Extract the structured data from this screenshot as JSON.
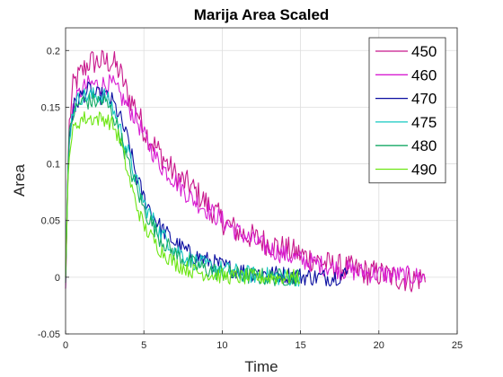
{
  "chart_data": {
    "type": "line",
    "title": "Marija Area Scaled",
    "xlabel": "Time",
    "ylabel": "Area",
    "xlim": [
      0,
      25
    ],
    "ylim": [
      -0.05,
      0.22
    ],
    "xticks": [
      0,
      5,
      10,
      15,
      20,
      25
    ],
    "yticks": [
      -0.05,
      0,
      0.05,
      0.1,
      0.15,
      0.2
    ],
    "xtick_labels": [
      "0",
      "5",
      "10",
      "15",
      "20",
      "25"
    ],
    "ytick_labels": [
      "-0.05",
      "0",
      "0.05",
      "0.1",
      "0.15",
      "0.2"
    ],
    "grid": true,
    "legend": {
      "placement": "top-right",
      "entries": [
        "450",
        "460",
        "470",
        "475",
        "480",
        "490"
      ]
    },
    "series": [
      {
        "name": "450",
        "color": "#c8188c",
        "noise": 0.012,
        "points": [
          [
            0,
            -0.01
          ],
          [
            0.2,
            0.13
          ],
          [
            0.5,
            0.17
          ],
          [
            1,
            0.18
          ],
          [
            1.5,
            0.19
          ],
          [
            2,
            0.19
          ],
          [
            2.5,
            0.19
          ],
          [
            3,
            0.19
          ],
          [
            3.5,
            0.18
          ],
          [
            4,
            0.16
          ],
          [
            4.5,
            0.15
          ],
          [
            5,
            0.13
          ],
          [
            6,
            0.11
          ],
          [
            7,
            0.09
          ],
          [
            8,
            0.08
          ],
          [
            9,
            0.065
          ],
          [
            10,
            0.05
          ],
          [
            11,
            0.04
          ],
          [
            12,
            0.035
          ],
          [
            13,
            0.03
          ],
          [
            14,
            0.025
          ],
          [
            15,
            0.02
          ],
          [
            16,
            0.015
          ],
          [
            17,
            0.01
          ],
          [
            18,
            0.008
          ],
          [
            19,
            0.005
          ],
          [
            20,
            0.003
          ],
          [
            21,
            0.0
          ],
          [
            22,
            -0.002
          ],
          [
            23,
            0.0
          ]
        ]
      },
      {
        "name": "460",
        "color": "#d81ed2",
        "noise": 0.009,
        "points": [
          [
            0,
            -0.01
          ],
          [
            0.2,
            0.12
          ],
          [
            0.5,
            0.15
          ],
          [
            1,
            0.165
          ],
          [
            1.5,
            0.17
          ],
          [
            2,
            0.17
          ],
          [
            2.5,
            0.17
          ],
          [
            3,
            0.17
          ],
          [
            3.5,
            0.16
          ],
          [
            4,
            0.15
          ],
          [
            4.5,
            0.14
          ],
          [
            5,
            0.125
          ],
          [
            6,
            0.1
          ],
          [
            7,
            0.085
          ],
          [
            8,
            0.07
          ],
          [
            9,
            0.06
          ],
          [
            10,
            0.05
          ],
          [
            11,
            0.04
          ],
          [
            12,
            0.032
          ],
          [
            13,
            0.025
          ],
          [
            14,
            0.02
          ],
          [
            15,
            0.015
          ],
          [
            16,
            0.012
          ],
          [
            17,
            0.008
          ],
          [
            18,
            0.006
          ],
          [
            19,
            0.004
          ],
          [
            20,
            0.003
          ],
          [
            21,
            0.002
          ],
          [
            22,
            0.001
          ],
          [
            23,
            0.0
          ]
        ]
      },
      {
        "name": "470",
        "color": "#0a0ea0",
        "noise": 0.008,
        "points": [
          [
            0,
            0.0
          ],
          [
            0.2,
            0.12
          ],
          [
            0.5,
            0.15
          ],
          [
            1,
            0.16
          ],
          [
            1.5,
            0.165
          ],
          [
            2,
            0.16
          ],
          [
            2.5,
            0.16
          ],
          [
            3,
            0.155
          ],
          [
            3.5,
            0.14
          ],
          [
            4,
            0.12
          ],
          [
            4.5,
            0.09
          ],
          [
            5,
            0.07
          ],
          [
            6,
            0.045
          ],
          [
            7,
            0.03
          ],
          [
            8,
            0.02
          ],
          [
            9,
            0.015
          ],
          [
            10,
            0.01
          ],
          [
            11,
            0.006
          ],
          [
            12,
            0.004
          ],
          [
            13,
            0.003
          ],
          [
            14,
            0.002
          ],
          [
            15,
            0.001
          ],
          [
            16,
            0.0
          ],
          [
            17,
            0.0
          ],
          [
            18,
            0.003
          ]
        ]
      },
      {
        "name": "475",
        "color": "#14c8c0",
        "noise": 0.008,
        "points": [
          [
            0,
            0.0
          ],
          [
            0.2,
            0.12
          ],
          [
            0.5,
            0.15
          ],
          [
            1,
            0.16
          ],
          [
            1.5,
            0.16
          ],
          [
            2,
            0.16
          ],
          [
            2.5,
            0.16
          ],
          [
            3,
            0.15
          ],
          [
            3.5,
            0.13
          ],
          [
            4,
            0.11
          ],
          [
            4.5,
            0.085
          ],
          [
            5,
            0.065
          ],
          [
            6,
            0.04
          ],
          [
            7,
            0.025
          ],
          [
            8,
            0.015
          ],
          [
            9,
            0.01
          ],
          [
            10,
            0.007
          ],
          [
            11,
            0.004
          ],
          [
            12,
            0.002
          ],
          [
            13,
            0.001
          ],
          [
            14,
            0.0
          ],
          [
            15,
            0.0
          ]
        ]
      },
      {
        "name": "480",
        "color": "#14aa64",
        "noise": 0.008,
        "points": [
          [
            0,
            -0.005
          ],
          [
            0.2,
            0.12
          ],
          [
            0.5,
            0.145
          ],
          [
            1,
            0.155
          ],
          [
            1.5,
            0.155
          ],
          [
            2,
            0.155
          ],
          [
            2.5,
            0.155
          ],
          [
            3,
            0.145
          ],
          [
            3.5,
            0.125
          ],
          [
            4,
            0.1
          ],
          [
            4.5,
            0.08
          ],
          [
            5,
            0.06
          ],
          [
            6,
            0.035
          ],
          [
            7,
            0.02
          ],
          [
            8,
            0.012
          ],
          [
            9,
            0.007
          ],
          [
            10,
            0.004
          ],
          [
            11,
            0.002
          ],
          [
            12,
            0.001
          ],
          [
            13,
            0.0
          ],
          [
            14,
            0.0
          ],
          [
            15,
            0.0
          ]
        ]
      },
      {
        "name": "490",
        "color": "#6ee614",
        "noise": 0.007,
        "points": [
          [
            0,
            0.0
          ],
          [
            0.2,
            0.11
          ],
          [
            0.5,
            0.13
          ],
          [
            1,
            0.14
          ],
          [
            1.5,
            0.14
          ],
          [
            2,
            0.14
          ],
          [
            2.5,
            0.14
          ],
          [
            3,
            0.135
          ],
          [
            3.5,
            0.12
          ],
          [
            4,
            0.09
          ],
          [
            4.5,
            0.065
          ],
          [
            5,
            0.045
          ],
          [
            6,
            0.025
          ],
          [
            7,
            0.012
          ],
          [
            8,
            0.006
          ],
          [
            9,
            0.003
          ],
          [
            10,
            0.001
          ],
          [
            11,
            0.0
          ],
          [
            12,
            0.0
          ],
          [
            13,
            0.0
          ],
          [
            14,
            0.0
          ],
          [
            15,
            0.0
          ]
        ]
      }
    ]
  }
}
